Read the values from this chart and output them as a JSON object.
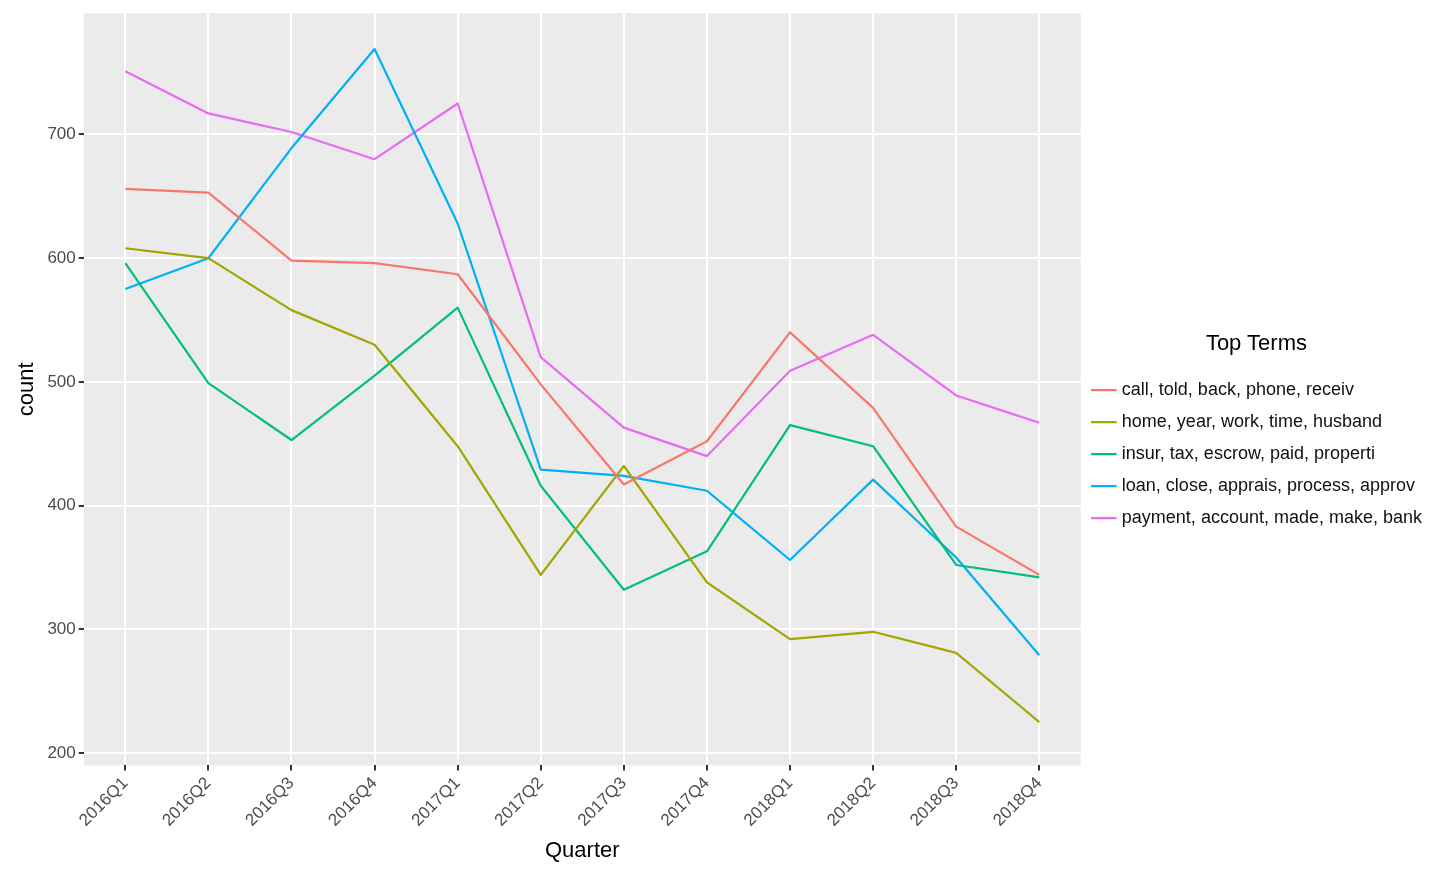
{
  "chart_data": {
    "type": "line",
    "xlabel": "Quarter",
    "ylabel": "count",
    "legend_title": "Top Terms",
    "legend": "right",
    "grid": true,
    "marker": "none",
    "line_style": "solid",
    "categories": [
      "2016Q1",
      "2016Q2",
      "2016Q3",
      "2016Q4",
      "2017Q1",
      "2017Q2",
      "2017Q3",
      "2017Q4",
      "2018Q1",
      "2018Q2",
      "2018Q3",
      "2018Q4"
    ],
    "ylim": [
      190,
      798
    ],
    "yticks": [
      200,
      300,
      400,
      500,
      600,
      700
    ],
    "series": [
      {
        "name": "call, told, back, phone, receiv",
        "color": "#f8766d",
        "values": [
          656,
          653,
          598,
          596,
          587,
          498,
          417,
          452,
          540,
          479,
          383,
          344
        ]
      },
      {
        "name": "home, year, work, time, husband",
        "color": "#a3a500",
        "values": [
          608,
          600,
          558,
          530,
          448,
          344,
          432,
          338,
          292,
          298,
          281,
          225
        ]
      },
      {
        "name": "insur, tax, escrow, paid, properti",
        "color": "#00bf7d",
        "values": [
          596,
          499,
          453,
          505,
          560,
          416,
          332,
          363,
          465,
          448,
          352,
          342
        ]
      },
      {
        "name": "loan, close, apprais, process, approv",
        "color": "#00b0f6",
        "values": [
          575,
          600,
          689,
          769,
          628,
          429,
          424,
          412,
          356,
          421,
          358,
          279
        ]
      },
      {
        "name": "payment, account, made, make, bank",
        "color": "#e76bf3",
        "values": [
          751,
          717,
          702,
          680,
          725,
          520,
          463,
          440,
          509,
          538,
          489,
          467
        ]
      }
    ]
  }
}
